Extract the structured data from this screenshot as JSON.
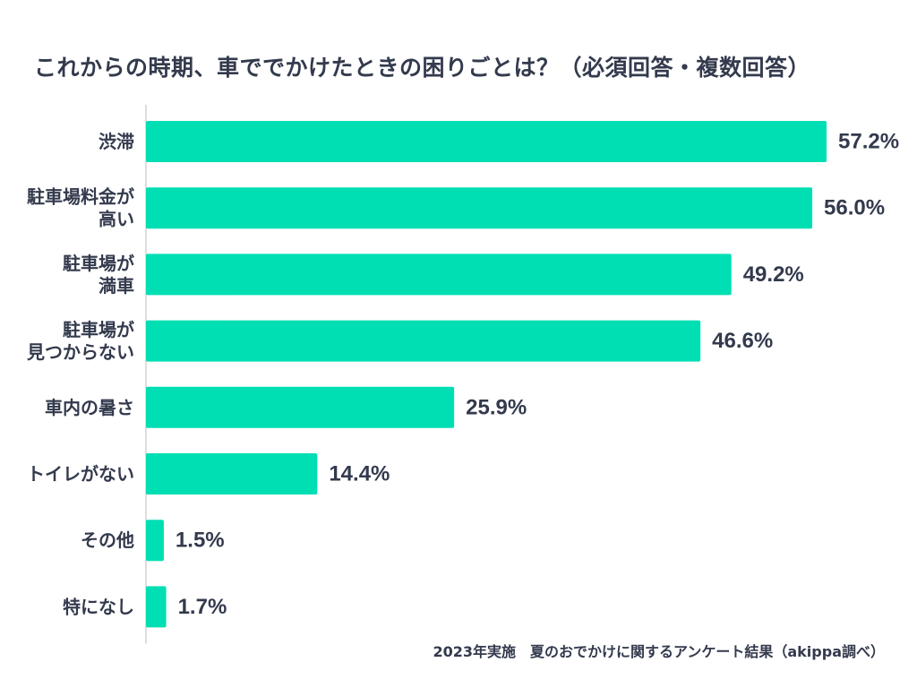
{
  "colors": {
    "bar": "#00dfb3",
    "text": "#333a4d",
    "axis": "#bbbbbb",
    "background": "#ffffff"
  },
  "chart_data": {
    "type": "bar",
    "orientation": "horizontal",
    "title": "これからの時期、車ででかけたときの困りごとは？（必須回答・複数回答）",
    "categories": [
      [
        "渋滞"
      ],
      [
        "駐車場料金が",
        "高い"
      ],
      [
        "駐車場が",
        "満車"
      ],
      [
        "駐車場が",
        "見つからない"
      ],
      [
        "車内の暑さ"
      ],
      [
        "トイレがない"
      ],
      [
        "その他"
      ],
      [
        "特になし"
      ]
    ],
    "values": [
      57.2,
      56.0,
      49.2,
      46.6,
      25.9,
      14.4,
      1.5,
      1.7
    ],
    "value_labels": [
      "57.2%",
      "56.0%",
      "49.2%",
      "46.6%",
      "25.9%",
      "14.4%",
      "1.5%",
      "1.7%"
    ],
    "unit": "%",
    "xlim": [
      0,
      57.2
    ],
    "grid": false,
    "xlabel": "",
    "ylabel": ""
  },
  "footnote": "2023年実施　夏のおでかけに関するアンケート結果（akippa調べ）"
}
